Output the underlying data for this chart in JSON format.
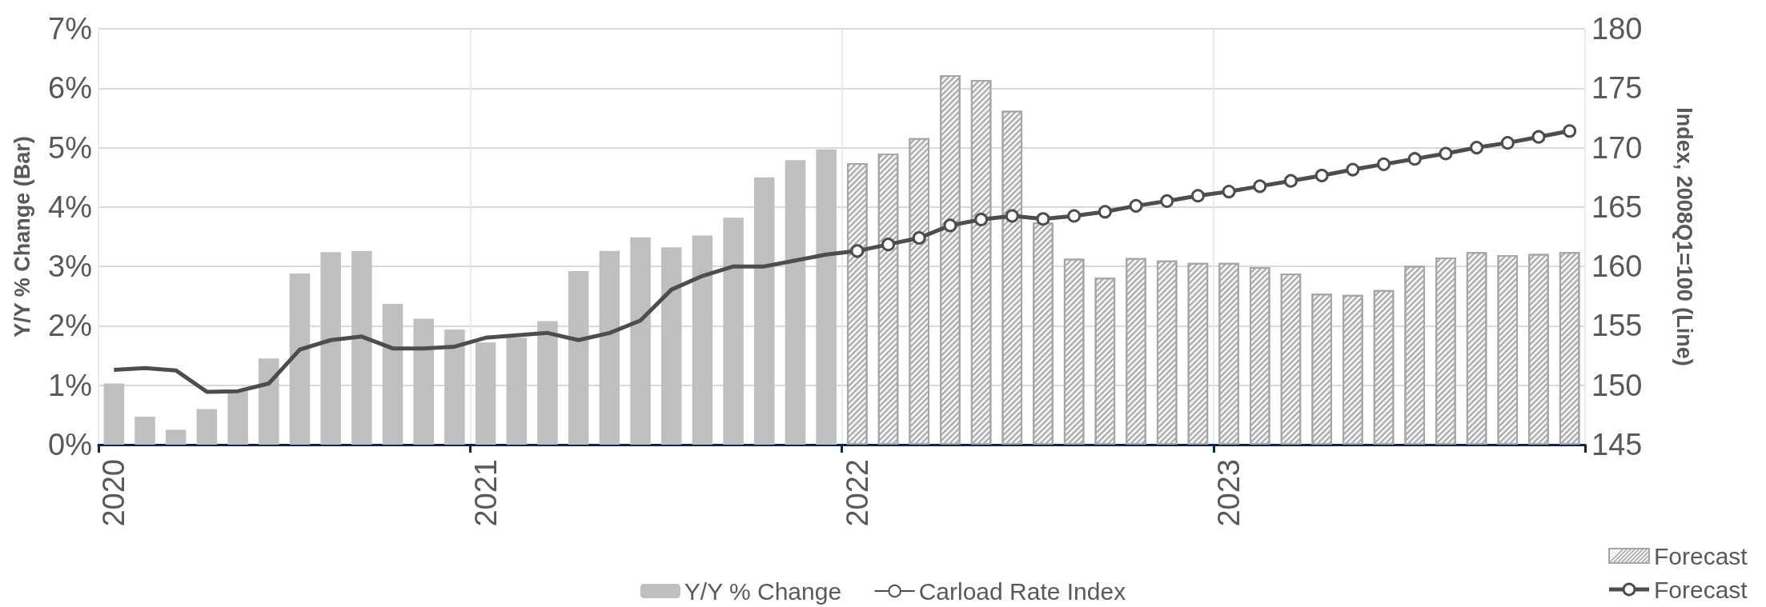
{
  "chart_data": {
    "type": "bar",
    "ylabel": "Y/Y % Change (Bar)",
    "y2label": "Index, 2008Q1=100 (Line)",
    "categories": [
      "2020",
      null,
      null,
      null,
      null,
      null,
      null,
      null,
      null,
      null,
      null,
      null,
      "2021",
      null,
      null,
      null,
      null,
      null,
      null,
      null,
      null,
      null,
      null,
      null,
      "2022",
      null,
      null,
      null,
      null,
      null,
      null,
      null,
      null,
      null,
      null,
      null,
      "2023",
      null,
      null,
      null,
      null,
      null,
      null,
      null,
      null,
      null,
      null,
      null
    ],
    "series": [
      {
        "name": "Y/Y % Change",
        "color": "#bfbfbf",
        "values": [
          1.03,
          0.47,
          0.25,
          0.6,
          0.9,
          1.45,
          2.88,
          3.24,
          3.26,
          2.37,
          2.12,
          1.94,
          1.72,
          1.8,
          2.08,
          2.92,
          3.26,
          3.49,
          3.32,
          3.52,
          3.82,
          4.5,
          4.79,
          4.97,
          null,
          null,
          null,
          null,
          null,
          null,
          null,
          null,
          null,
          null,
          null,
          null,
          null,
          null,
          null,
          null,
          null,
          null,
          null,
          null,
          null,
          null,
          null,
          null
        ]
      },
      {
        "name": "Forecast",
        "color": "#a6a6a6",
        "values": [
          null,
          null,
          null,
          null,
          null,
          null,
          null,
          null,
          null,
          null,
          null,
          null,
          null,
          null,
          null,
          null,
          null,
          null,
          null,
          null,
          null,
          null,
          null,
          null,
          4.74,
          4.9,
          5.16,
          6.22,
          6.14,
          5.62,
          3.74,
          3.13,
          2.81,
          3.14,
          3.1,
          3.06,
          3.06,
          2.99,
          2.88,
          2.54,
          2.52,
          2.6,
          3.01,
          3.15,
          3.24,
          3.19,
          3.21,
          3.24
        ]
      },
      {
        "name": "Carload Rate Index",
        "type": "line",
        "axis": "y2",
        "marker": "none",
        "color": "#4d4d4d",
        "values": [
          151.3,
          151.45,
          151.25,
          149.45,
          149.5,
          150.15,
          153.0,
          153.8,
          154.1,
          153.1,
          153.1,
          153.25,
          154.0,
          154.2,
          154.4,
          153.8,
          154.4,
          155.45,
          158.05,
          159.2,
          160.0,
          160.0,
          160.5,
          161.0,
          161.3,
          null,
          null,
          null,
          null,
          null,
          null,
          null,
          null,
          null,
          null,
          null,
          null,
          null,
          null,
          null,
          null,
          null,
          null,
          null,
          null,
          null,
          null,
          null
        ]
      },
      {
        "name": "Forecast",
        "type": "line",
        "axis": "y2",
        "marker": "circle",
        "color": "#4d4d4d",
        "values": [
          null,
          null,
          null,
          null,
          null,
          null,
          null,
          null,
          null,
          null,
          null,
          null,
          null,
          null,
          null,
          null,
          null,
          null,
          null,
          null,
          null,
          null,
          null,
          null,
          161.3,
          161.85,
          162.4,
          163.45,
          163.95,
          164.25,
          164.0,
          164.25,
          164.6,
          165.1,
          165.5,
          165.95,
          166.3,
          166.75,
          167.2,
          167.65,
          168.15,
          168.6,
          169.05,
          169.5,
          170.0,
          170.4,
          170.9,
          171.4
        ]
      }
    ],
    "ylim": [
      0,
      7
    ],
    "yticks": [
      {
        "value": 0,
        "label": "0%"
      },
      {
        "value": 1,
        "label": "1%"
      },
      {
        "value": 2,
        "label": "2%"
      },
      {
        "value": 3,
        "label": "3%"
      },
      {
        "value": 4,
        "label": "4%"
      },
      {
        "value": 5,
        "label": "5%"
      },
      {
        "value": 6,
        "label": "6%"
      },
      {
        "value": 7,
        "label": "7%"
      }
    ],
    "y2lim": [
      145,
      180
    ],
    "y2ticks": [
      145,
      150,
      155,
      160,
      165,
      170,
      175,
      180
    ],
    "grid": true,
    "legend": "bottom"
  }
}
